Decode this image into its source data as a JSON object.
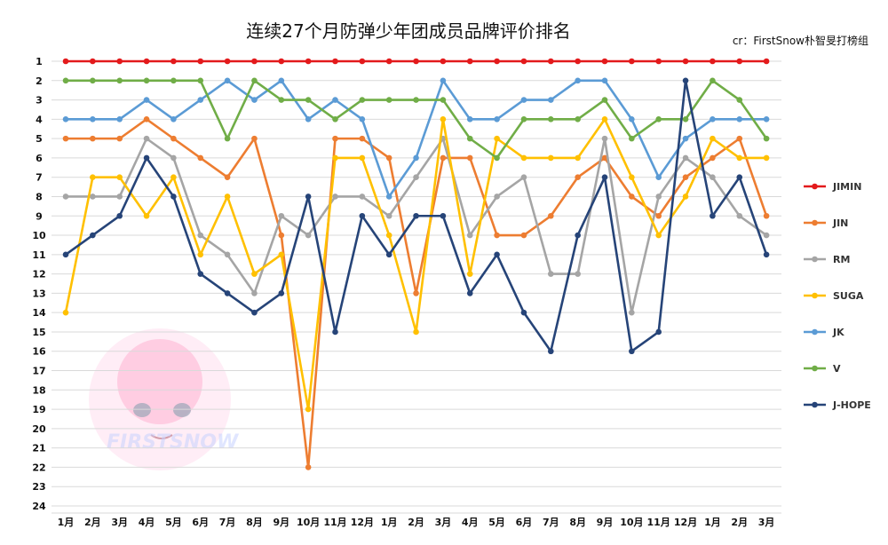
{
  "chart_data": {
    "type": "line",
    "title": "连续27个月防弹少年团成员品牌评价排名",
    "credit": "cr：FirstSnow朴智旻打榜组",
    "categories": [
      "1月",
      "2月",
      "3月",
      "4月",
      "5月",
      "6月",
      "7月",
      "8月",
      "9月",
      "10月",
      "11月",
      "12月",
      "1月",
      "2月",
      "3月",
      "4月",
      "5月",
      "6月",
      "7月",
      "8月",
      "9月",
      "10月",
      "11月",
      "12月",
      "1月",
      "2月",
      "3月"
    ],
    "y_ticks": [
      "1",
      "2",
      "3",
      "4",
      "5",
      "6",
      "7",
      "8",
      "9",
      "10",
      "11",
      "12",
      "13",
      "14",
      "15",
      "16",
      "17",
      "18",
      "19",
      "20",
      "21",
      "22",
      "23",
      "24"
    ],
    "ylim": [
      1,
      24
    ],
    "y_inverted": true,
    "grid": true,
    "legend_position": "right",
    "series": [
      {
        "name": "JIMIN",
        "color": "#e31a1c",
        "values": [
          1,
          1,
          1,
          1,
          1,
          1,
          1,
          1,
          1,
          1,
          1,
          1,
          1,
          1,
          1,
          1,
          1,
          1,
          1,
          1,
          1,
          1,
          1,
          1,
          1,
          1,
          1
        ]
      },
      {
        "name": "JIN",
        "color": "#ed7d31",
        "values": [
          5,
          5,
          5,
          4,
          5,
          6,
          7,
          5,
          10,
          22,
          5,
          5,
          6,
          13,
          6,
          6,
          10,
          10,
          9,
          7,
          6,
          8,
          9,
          7,
          6,
          5,
          9
        ]
      },
      {
        "name": "RM",
        "color": "#a5a5a5",
        "values": [
          8,
          8,
          8,
          5,
          6,
          10,
          11,
          13,
          9,
          10,
          8,
          8,
          9,
          7,
          5,
          10,
          8,
          7,
          12,
          12,
          5,
          14,
          8,
          6,
          7,
          9,
          10
        ]
      },
      {
        "name": "SUGA",
        "color": "#ffc000",
        "values": [
          14,
          7,
          7,
          9,
          7,
          11,
          8,
          12,
          11,
          19,
          6,
          6,
          10,
          15,
          4,
          12,
          5,
          6,
          6,
          6,
          4,
          7,
          10,
          8,
          5,
          6,
          6
        ]
      },
      {
        "name": "JK",
        "color": "#5b9bd5",
        "values": [
          4,
          4,
          4,
          3,
          4,
          3,
          2,
          3,
          2,
          4,
          3,
          4,
          8,
          6,
          2,
          4,
          4,
          3,
          3,
          2,
          2,
          4,
          7,
          5,
          4,
          4,
          4
        ]
      },
      {
        "name": "V",
        "color": "#70ad47",
        "values": [
          2,
          2,
          2,
          2,
          2,
          2,
          5,
          2,
          3,
          3,
          4,
          3,
          3,
          3,
          3,
          5,
          6,
          4,
          4,
          4,
          3,
          5,
          4,
          4,
          2,
          3,
          5
        ]
      },
      {
        "name": "J-HOPE",
        "color": "#264478",
        "values": [
          11,
          10,
          9,
          6,
          8,
          12,
          13,
          14,
          13,
          8,
          15,
          9,
          11,
          9,
          9,
          13,
          11,
          14,
          16,
          10,
          7,
          16,
          15,
          2,
          9,
          7,
          11
        ]
      }
    ]
  },
  "watermark": {
    "text": "FIRSTSNOW",
    "icon": "anime-face-logo"
  }
}
